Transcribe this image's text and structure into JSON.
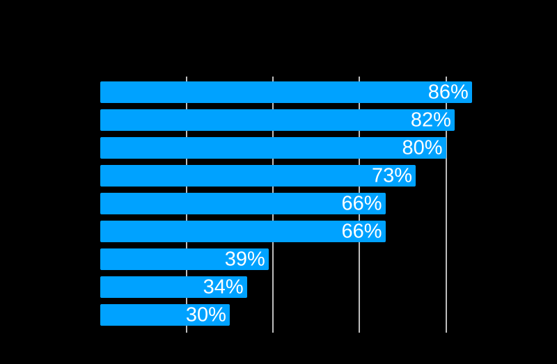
{
  "chart_data": {
    "type": "bar",
    "orientation": "horizontal",
    "title": "",
    "xlabel": "",
    "ylabel": "",
    "values": [
      86,
      82,
      80,
      73,
      66,
      66,
      39,
      34,
      30
    ],
    "data_labels": [
      "86%",
      "82%",
      "80%",
      "73%",
      "66%",
      "66%",
      "39%",
      "34%",
      "30%"
    ],
    "value_unit": "%",
    "axis_range": [
      0,
      100
    ],
    "gridline_values": [
      20,
      40,
      60,
      80
    ],
    "gridlines_visible": true,
    "tick_labels_visible": false,
    "legend_visible": false,
    "colors": {
      "background": "#000000",
      "bar": "#00a2ff",
      "bar_label": "#ffffff",
      "gridline": "#bdbdbd"
    }
  }
}
